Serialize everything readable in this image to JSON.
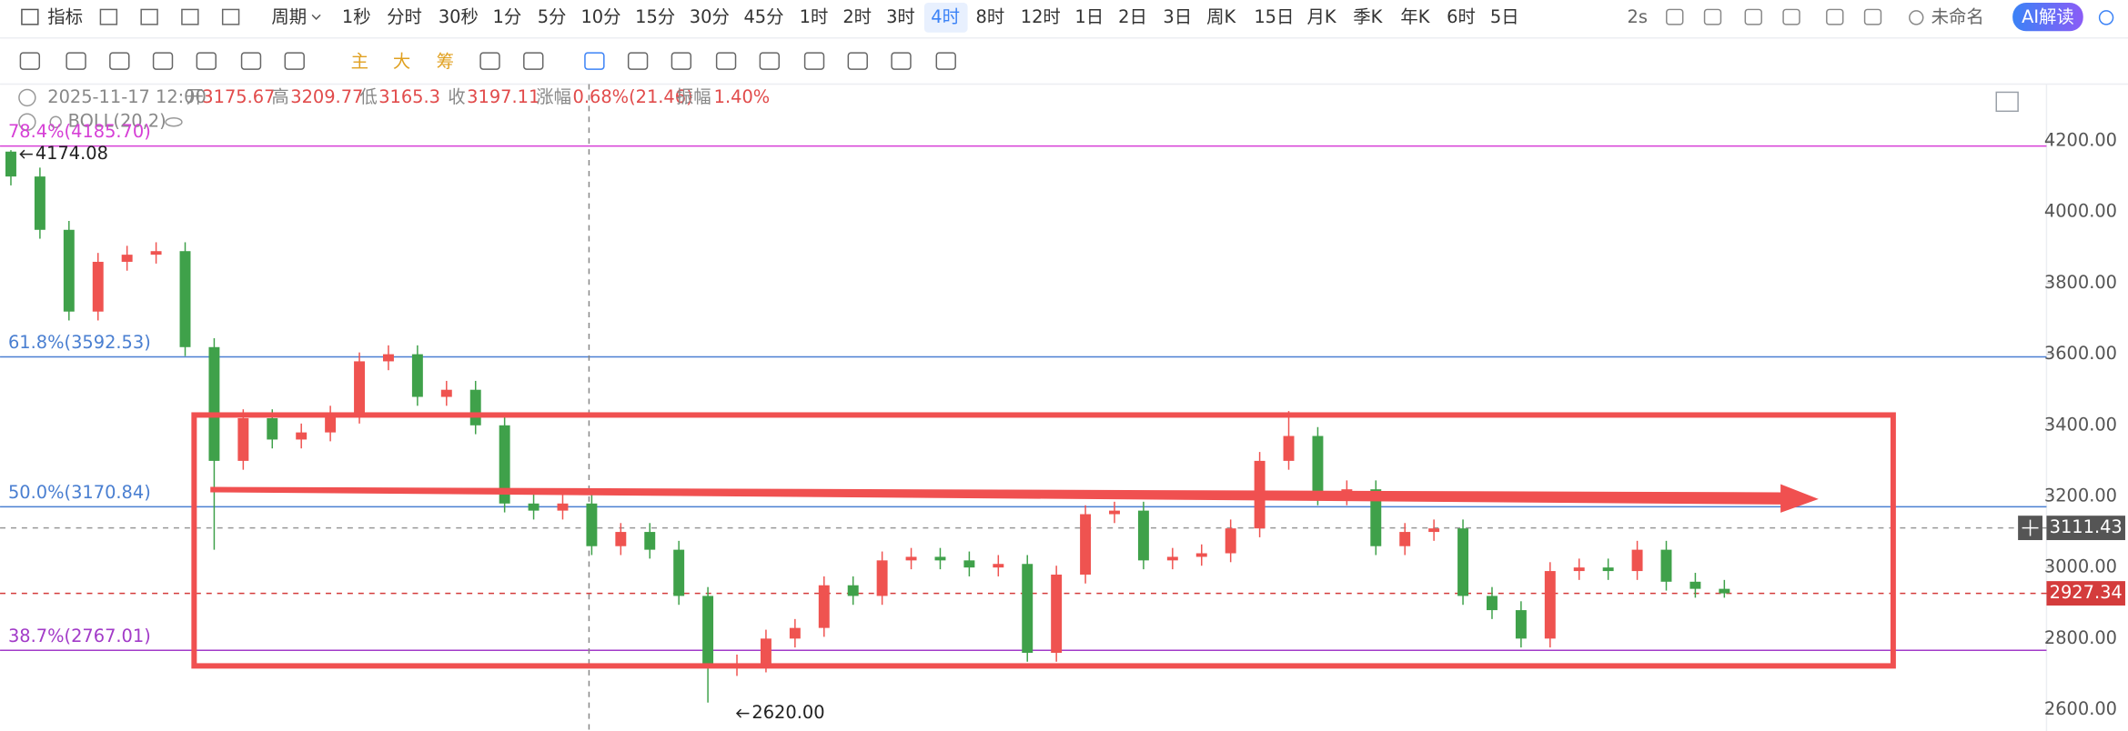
{
  "toolbar": {
    "items": [
      "指标",
      "周期",
      "1秒",
      "分时",
      "30秒",
      "1分",
      "5分",
      "10分",
      "15分",
      "30分",
      "45分",
      "1时",
      "2时",
      "3时",
      "4时",
      "8时",
      "12时",
      "1日",
      "2日",
      "3日",
      "周K",
      "15日",
      "月K",
      "季K",
      "年K",
      "6时",
      "5日"
    ],
    "active_index": 14,
    "right_items": [
      "2s",
      "未命名",
      "AI解读"
    ]
  },
  "draw_toolbar": {
    "items": [
      "主",
      "大",
      "筹"
    ]
  },
  "info": {
    "date": "2025-11-17 12:00",
    "open_label": "开",
    "open": 3175.67,
    "high_label": "高",
    "high": 3209.77,
    "low_label": "低",
    "low": 3165.3,
    "close_label": "收",
    "close": 3197.11,
    "change_label": "涨幅",
    "change": "0.68%(21.46)",
    "amplitude_label": "振幅",
    "amplitude": "1.40%"
  },
  "indicator": "BOLL(20,2)",
  "chart_data": {
    "type": "candlestick",
    "up_color": "#ef5350",
    "down_color": "#3fa14a",
    "ylim": [
      2540,
      4360
    ],
    "yticks": [
      {
        "value": 2600,
        "label": "2600.00"
      },
      {
        "value": 2800,
        "label": "2800.00"
      },
      {
        "value": 3000,
        "label": "3000.00"
      },
      {
        "value": 3200,
        "label": "3200.00"
      },
      {
        "value": 3400,
        "label": "3400.00"
      },
      {
        "value": 3600,
        "label": "3600.00"
      },
      {
        "value": 3800,
        "label": "3800.00"
      },
      {
        "value": 4000,
        "label": "4000.00"
      },
      {
        "value": 4200,
        "label": "4200.00"
      }
    ],
    "open": [
      4170,
      4100,
      3950,
      3720,
      3860,
      3880,
      3890,
      3620,
      3300,
      3420,
      3360,
      3380,
      3430,
      3580,
      3600,
      3480,
      3500,
      3400,
      3180,
      3160,
      3180,
      3060,
      3100,
      3050,
      2920,
      2720,
      2730,
      2800,
      2830,
      2950,
      2920,
      3020,
      3030,
      3020,
      3000,
      3010,
      2760,
      2980,
      3150,
      3160,
      3020,
      3030,
      3040,
      3110,
      3300,
      3370,
      3200,
      3220,
      3060,
      3100,
      3110,
      2920,
      2880,
      2800,
      2990,
      3000,
      2990,
      3050,
      2960,
      2940
    ],
    "high": [
      4174.08,
      4125,
      3975,
      3885,
      3905,
      3915,
      3915,
      3645,
      3445,
      3445,
      3405,
      3455,
      3605,
      3625,
      3625,
      3525,
      3525,
      3425,
      3205,
      3205,
      3205,
      3125,
      3125,
      3075,
      2945,
      2755,
      2825,
      2855,
      2975,
      2975,
      3045,
      3055,
      3055,
      3045,
      3035,
      3035,
      3005,
      3175,
      3185,
      3185,
      3055,
      3065,
      3135,
      3325,
      3440,
      3395,
      3245,
      3245,
      3125,
      3135,
      3135,
      2945,
      2905,
      3015,
      3025,
      3025,
      3075,
      3075,
      2985,
      2965
    ],
    "low": [
      4075,
      3925,
      3695,
      3695,
      3835,
      3855,
      3595,
      3050,
      3275,
      3335,
      3335,
      3355,
      3405,
      3555,
      3455,
      3455,
      3375,
      3155,
      3135,
      3135,
      3035,
      3035,
      3025,
      2895,
      2620,
      2695,
      2705,
      2775,
      2805,
      2895,
      2895,
      2995,
      2995,
      2975,
      2975,
      2735,
      2735,
      2955,
      3125,
      2995,
      2995,
      3005,
      3015,
      3085,
      3275,
      3175,
      3175,
      3035,
      3035,
      3075,
      2895,
      2855,
      2775,
      2775,
      2965,
      2965,
      2965,
      2935,
      2915,
      2915
    ],
    "close": [
      4100,
      3950,
      3720,
      3860,
      3880,
      3890,
      3620,
      3300,
      3420,
      3360,
      3380,
      3430,
      3580,
      3600,
      3480,
      3500,
      3400,
      3180,
      3160,
      3180,
      3060,
      3100,
      3050,
      2920,
      2720,
      2730,
      2800,
      2830,
      2950,
      2920,
      3020,
      3030,
      3020,
      3000,
      3010,
      2760,
      2980,
      3150,
      3160,
      3020,
      3030,
      3040,
      3110,
      3300,
      3370,
      3200,
      3220,
      3060,
      3100,
      3110,
      2920,
      2880,
      2800,
      2990,
      3000,
      2990,
      3050,
      2960,
      2940,
      2927.34
    ],
    "fib_levels": [
      {
        "label": "78.4%(4185.70)",
        "value": 4185.7,
        "color": "#d63fd6"
      },
      {
        "label": "61.8%(3592.53)",
        "value": 3592.53,
        "color": "#4a7fd1"
      },
      {
        "label": "50.0%(3170.84)",
        "value": 3170.84,
        "color": "#4a7fd1"
      },
      {
        "label": "38.7%(2767.01)",
        "value": 2767.01,
        "color": "#a23bc8"
      }
    ],
    "price_marks": [
      {
        "value": 4174.08,
        "label": "4174.08"
      },
      {
        "value": 2620,
        "label": "2620.00"
      }
    ],
    "crosshair_price": 3111.43,
    "last_price": 2927.34
  }
}
